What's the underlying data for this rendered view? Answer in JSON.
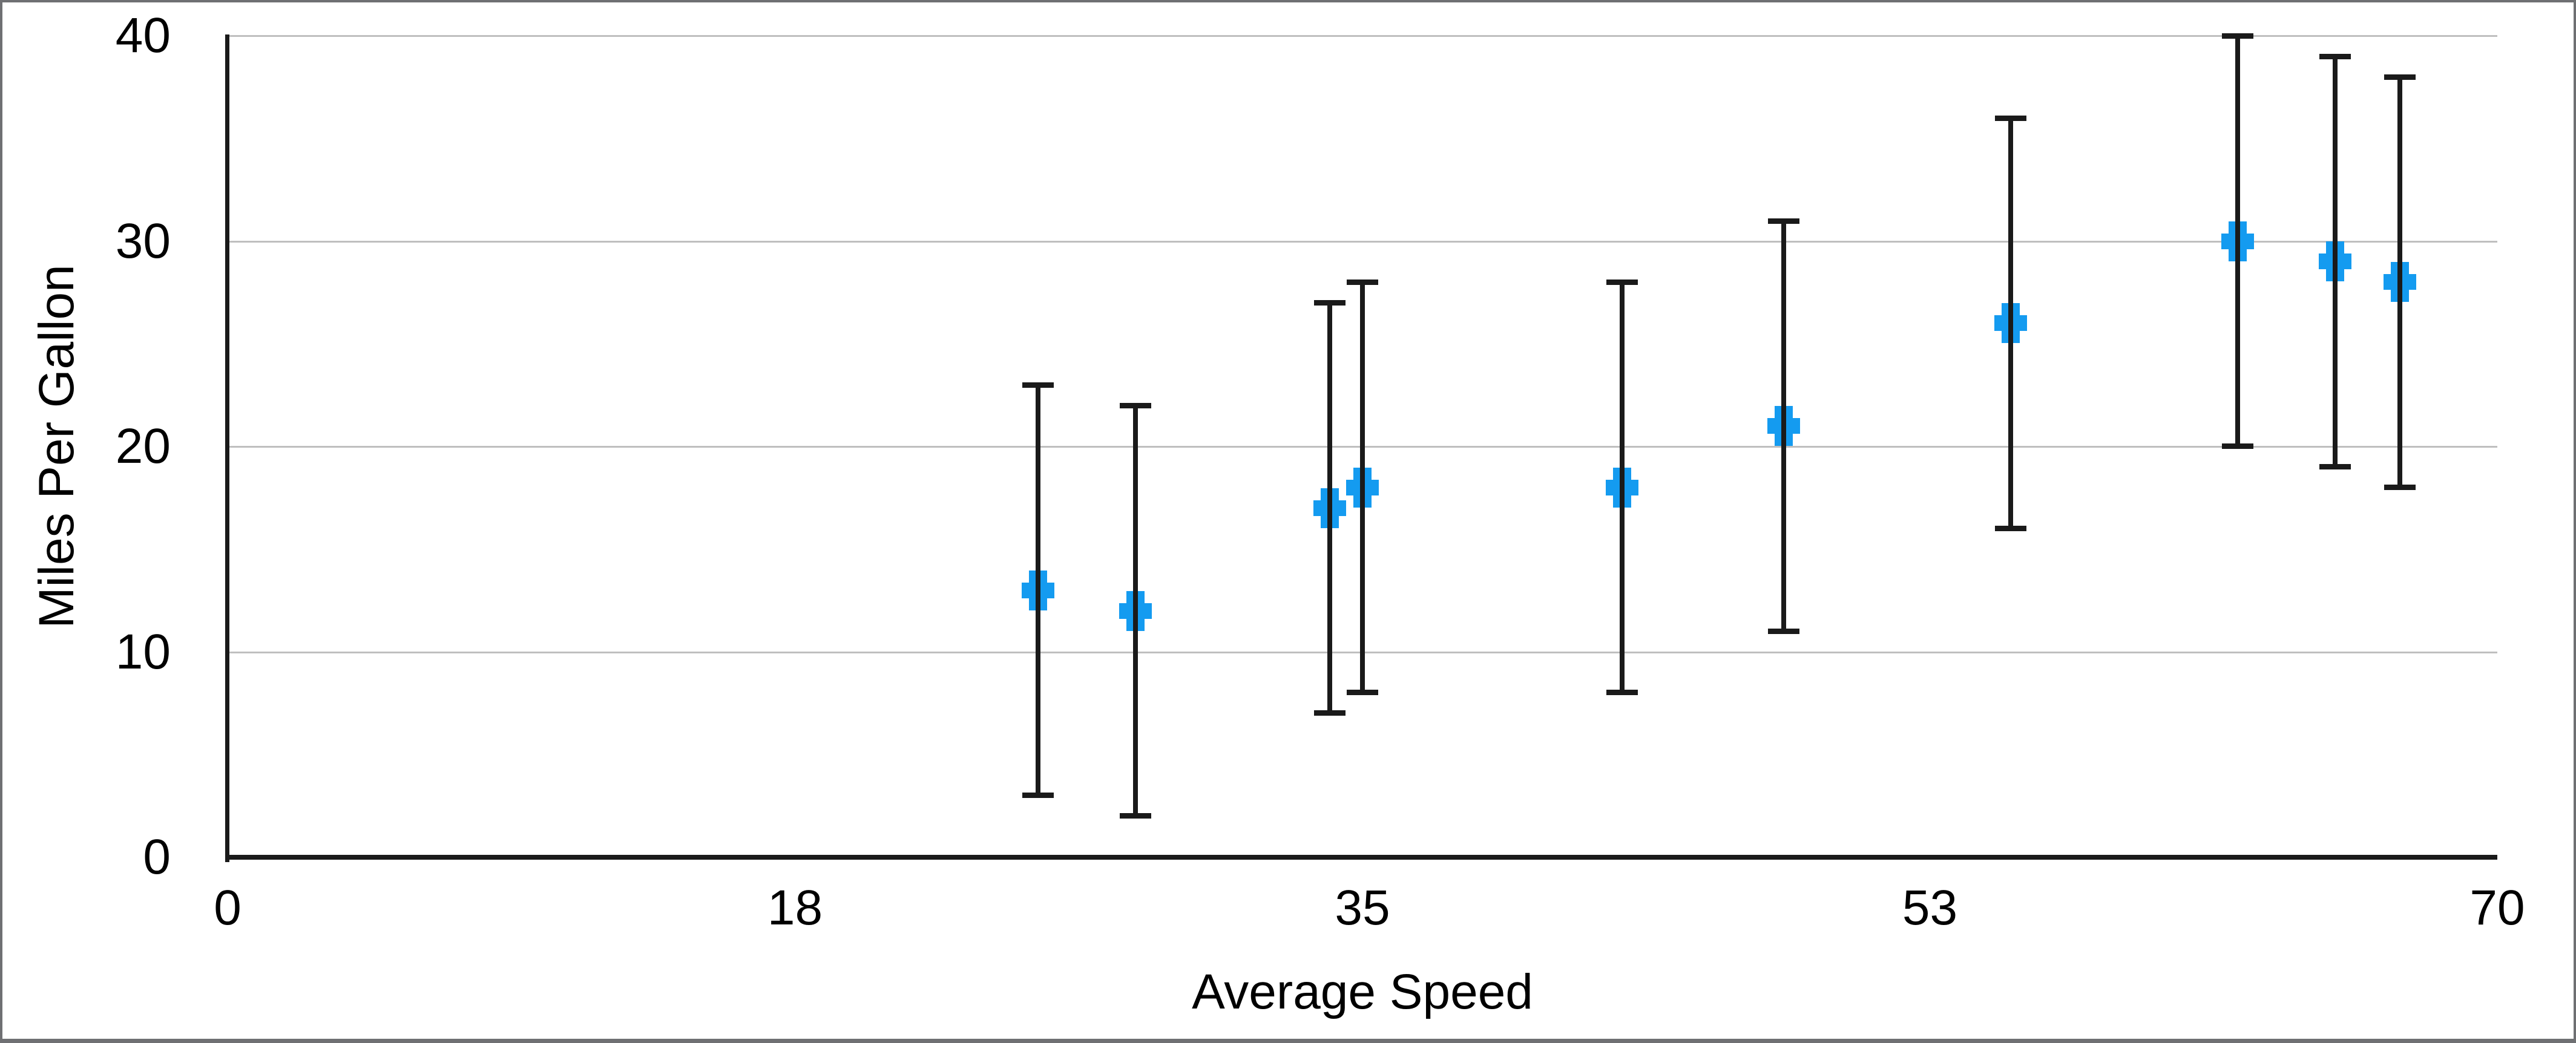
{
  "chart_data": {
    "type": "scatter",
    "title": "",
    "xlabel": "Average Speed",
    "ylabel": "Miles Per Gallon",
    "xlim": [
      0,
      70
    ],
    "ylim": [
      0,
      40
    ],
    "grid": "horizontal",
    "legend": "none",
    "marker": "plus",
    "colors": {
      "marker": "#149bf0",
      "error_bar": "#1a1a1a",
      "axis": "#1a1a1a",
      "gridline": "#bfbfbf",
      "frame_border": "#6f7073",
      "background": "#ffffff",
      "text": "#000000"
    },
    "x_ticks": [
      {
        "value": 0,
        "label": "0"
      },
      {
        "value": 17.5,
        "label": "18"
      },
      {
        "value": 35,
        "label": "35"
      },
      {
        "value": 52.5,
        "label": "53"
      },
      {
        "value": 70,
        "label": "70"
      }
    ],
    "y_ticks": [
      {
        "value": 0,
        "label": "0"
      },
      {
        "value": 10,
        "label": "10"
      },
      {
        "value": 20,
        "label": "20"
      },
      {
        "value": 30,
        "label": "30"
      },
      {
        "value": 40,
        "label": "40"
      }
    ],
    "points": [
      {
        "x": 25,
        "y": 13,
        "error": 10
      },
      {
        "x": 28,
        "y": 12,
        "error": 10
      },
      {
        "x": 34,
        "y": 17,
        "error": 10
      },
      {
        "x": 35,
        "y": 18,
        "error": 10
      },
      {
        "x": 43,
        "y": 18,
        "error": 10
      },
      {
        "x": 48,
        "y": 21,
        "error": 10
      },
      {
        "x": 55,
        "y": 26,
        "error": 10
      },
      {
        "x": 62,
        "y": 30,
        "error": 10
      },
      {
        "x": 65,
        "y": 29,
        "error": 10
      },
      {
        "x": 67,
        "y": 28,
        "error": 10
      }
    ]
  }
}
